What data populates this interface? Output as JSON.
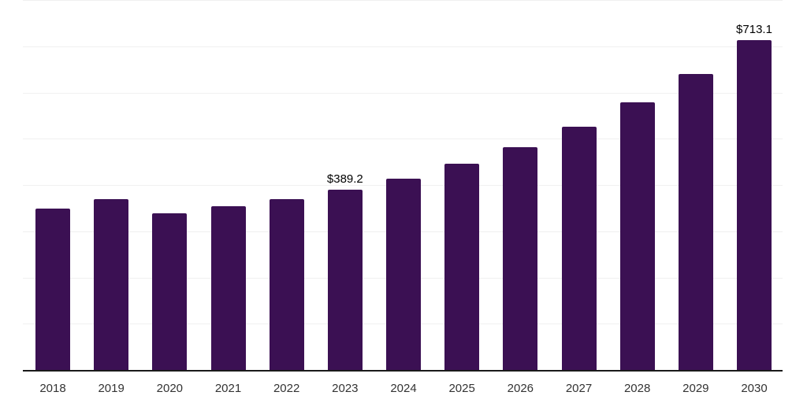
{
  "chart_data": {
    "type": "bar",
    "title": "",
    "categories": [
      "2018",
      "2019",
      "2020",
      "2021",
      "2022",
      "2023",
      "2024",
      "2025",
      "2026",
      "2027",
      "2028",
      "2029",
      "2030"
    ],
    "values": [
      348.6,
      369.1,
      338.3,
      353.7,
      369.1,
      389.2,
      413.5,
      446.0,
      481.8,
      526.3,
      579.2,
      640.7,
      713.1
    ],
    "data_labels": [
      "",
      "",
      "",
      "",
      "",
      "$389.2",
      "",
      "",
      "",
      "",
      "",
      "",
      "$713.1"
    ],
    "xlabel": "",
    "ylabel": "",
    "ylim": [
      0,
      800
    ],
    "grid_step": 100,
    "grid": "horizontal",
    "legend_position": "none",
    "colors": {
      "bar": "#3b1053",
      "axis": "#1a1a1a",
      "grid": "#f0f0f0",
      "data_label": "#000000",
      "tick_label": "#333333",
      "background": "#ffffff"
    }
  }
}
